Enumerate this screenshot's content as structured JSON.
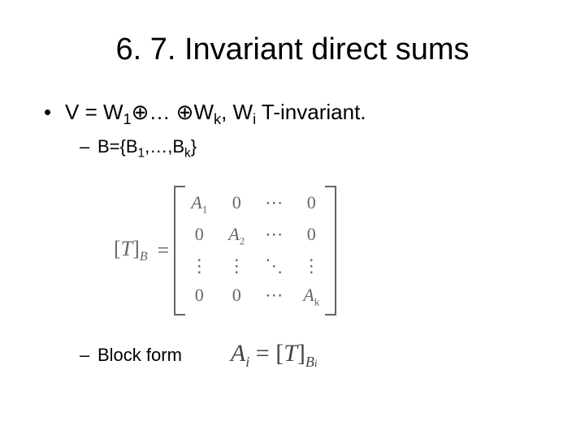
{
  "title": "6. 7. Invariant direct sums",
  "bullet_main": "V = W",
  "bullet_main_sub1": "1",
  "bullet_main_mid": "… ",
  "bullet_main_after": "W",
  "bullet_main_sub2": "k",
  "bullet_main_tail": ", W",
  "bullet_main_sub3": "i",
  "bullet_main_end": " T-invariant.",
  "oplus": "⊕",
  "bullet_basis_pre": "B={B",
  "bullet_basis_sub1": "1",
  "bullet_basis_mid": ",…,B",
  "bullet_basis_sub2": "k",
  "bullet_basis_end": "}",
  "matrix": {
    "lhs_open": "[",
    "lhs_T": "T",
    "lhs_close": "]",
    "lhs_sub": "B",
    "eq": "=",
    "cells": [
      [
        "A",
        "1",
        "0",
        "",
        "⋯",
        "",
        "0",
        ""
      ],
      [
        "0",
        "",
        "A",
        "2",
        "⋯",
        "",
        "0",
        ""
      ],
      [
        "⋮",
        "",
        "⋮",
        "",
        "⋱",
        "",
        "⋮",
        ""
      ],
      [
        "0",
        "",
        "0",
        "",
        "⋯",
        "",
        "A",
        "k"
      ]
    ]
  },
  "blockform_label": "Block form",
  "formula2": {
    "A": "A",
    "i": "i",
    "eq": " = ",
    "open": "[",
    "T": "T",
    "close": "]",
    "B": "B",
    "Bi": "i"
  }
}
